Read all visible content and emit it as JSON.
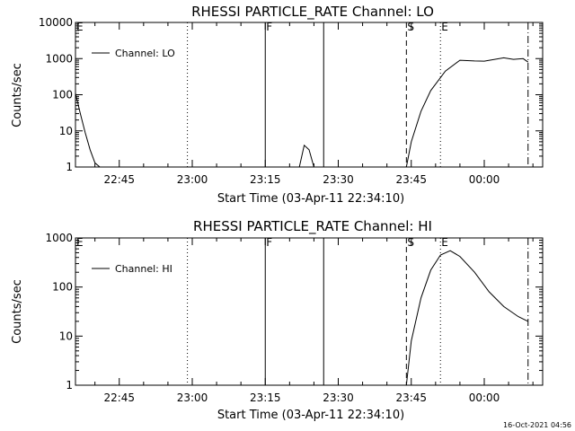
{
  "timestamp": "16-Oct-2021 04:56",
  "chart_data": [
    {
      "type": "line",
      "title": "RHESSI PARTICLE_RATE Channel: LO",
      "xlabel": "Start Time (03-Apr-11 22:34:10)",
      "ylabel": "Counts/sec",
      "y_scale": "log",
      "ylim": [
        1,
        10000
      ],
      "y_ticks": [
        1,
        10,
        100,
        1000,
        10000
      ],
      "y_tick_labels": [
        "1",
        "10",
        "100",
        "1000",
        "10000"
      ],
      "x_range": [
        "22:36",
        "00:12"
      ],
      "x_ticks": [
        "22:45",
        "23:00",
        "23:15",
        "23:30",
        "23:45",
        "00:00"
      ],
      "legend": {
        "label": "Channel: LO",
        "placement": "upper-left"
      },
      "grid": false,
      "markers": [
        {
          "label": "E",
          "time": "22:36",
          "style": "dotted"
        },
        {
          "label": "",
          "time": "22:59",
          "style": "dotted"
        },
        {
          "label": "F",
          "time": "23:15",
          "style": "solid"
        },
        {
          "label": "",
          "time": "23:27",
          "style": "solid"
        },
        {
          "label": "S",
          "time": "23:44",
          "style": "dashed"
        },
        {
          "label": "E",
          "time": "23:51",
          "style": "dotted"
        },
        {
          "label": "",
          "time": "00:09",
          "style": "dashdot"
        }
      ],
      "series": [
        {
          "name": "Channel: LO",
          "segments": [
            {
              "x": [
                "22:36",
                "22:37",
                "22:38",
                "22:39",
                "22:40",
                "22:41"
              ],
              "y": [
                110,
                30,
                9,
                3,
                1.3,
                1
              ]
            },
            {
              "x": [
                "23:22",
                "23:23",
                "23:24",
                "23:25"
              ],
              "y": [
                1,
                4,
                3,
                1
              ]
            },
            {
              "x": [
                "23:44",
                "23:45",
                "23:47",
                "23:49",
                "23:52",
                "23:55",
                "23:58",
                "00:00",
                "00:04",
                "00:06",
                "00:08",
                "00:09"
              ],
              "y": [
                1,
                5,
                35,
                130,
                450,
                900,
                860,
                850,
                1050,
                950,
                1000,
                800
              ]
            }
          ]
        }
      ]
    },
    {
      "type": "line",
      "title": "RHESSI PARTICLE_RATE Channel: HI",
      "xlabel": "Start Time (03-Apr-11 22:34:10)",
      "ylabel": "Counts/sec",
      "y_scale": "log",
      "ylim": [
        1,
        1000
      ],
      "y_ticks": [
        1,
        10,
        100,
        1000
      ],
      "y_tick_labels": [
        "1",
        "10",
        "100",
        "1000"
      ],
      "x_range": [
        "22:36",
        "00:12"
      ],
      "x_ticks": [
        "22:45",
        "23:00",
        "23:15",
        "23:30",
        "23:45",
        "00:00"
      ],
      "legend": {
        "label": "Channel: HI",
        "placement": "upper-left"
      },
      "grid": false,
      "markers": [
        {
          "label": "E",
          "time": "22:36",
          "style": "dotted"
        },
        {
          "label": "",
          "time": "22:59",
          "style": "dotted"
        },
        {
          "label": "F",
          "time": "23:15",
          "style": "solid"
        },
        {
          "label": "",
          "time": "23:27",
          "style": "solid"
        },
        {
          "label": "S",
          "time": "23:44",
          "style": "dashed"
        },
        {
          "label": "E",
          "time": "23:51",
          "style": "dotted"
        },
        {
          "label": "",
          "time": "00:09",
          "style": "dashdot"
        }
      ],
      "series": [
        {
          "name": "Channel: HI",
          "segments": [
            {
              "x": [
                "23:44",
                "23:45",
                "23:47",
                "23:49",
                "23:51",
                "23:53",
                "23:55",
                "23:58",
                "00:01",
                "00:04",
                "00:07",
                "00:09"
              ],
              "y": [
                1,
                8,
                60,
                220,
                450,
                550,
                420,
                200,
                80,
                40,
                25,
                20
              ]
            }
          ]
        }
      ]
    }
  ]
}
